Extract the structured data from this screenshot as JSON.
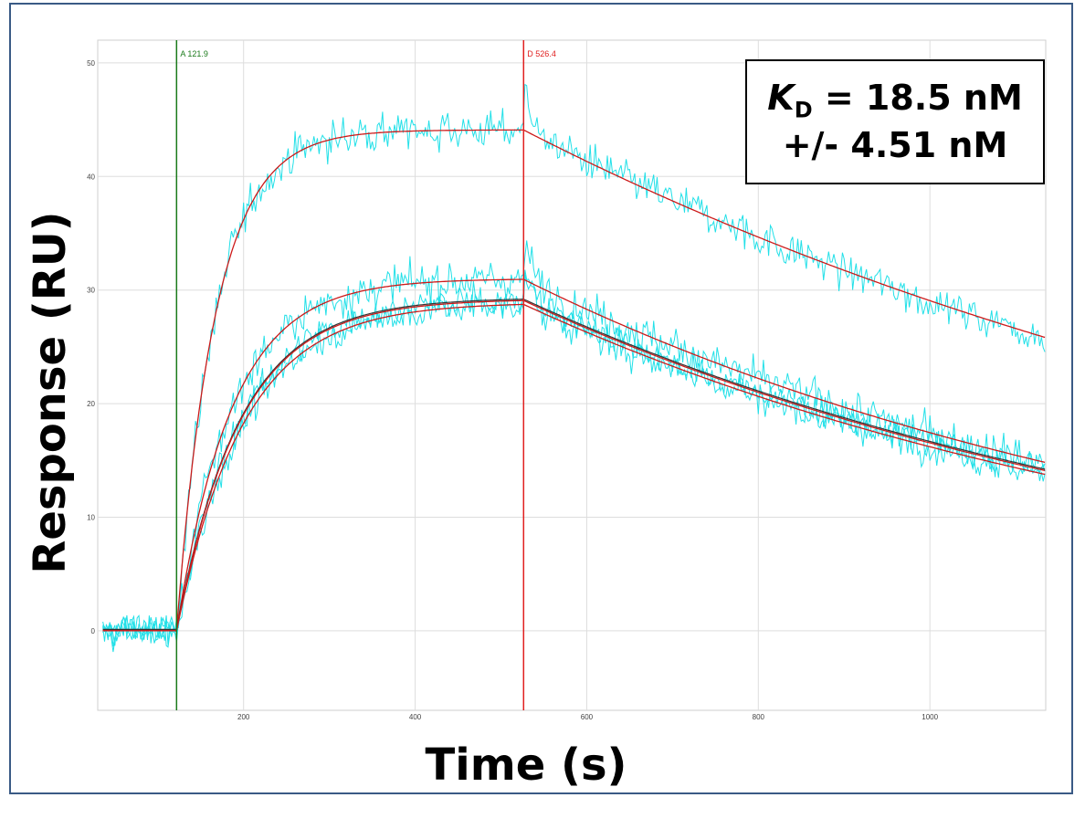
{
  "chart_data": {
    "type": "line",
    "xlabel": "Time (s)",
    "ylabel": "Response (RU)",
    "xlim": [
      30,
      1135
    ],
    "ylim": [
      -7,
      52
    ],
    "x_ticks": [
      200,
      400,
      600,
      800,
      1000
    ],
    "y_ticks": [
      0,
      10,
      20,
      30,
      40,
      50
    ],
    "grid": true,
    "markers": [
      {
        "label": "A 121.9",
        "x": 121.9,
        "color": "#1a7a1a"
      },
      {
        "label": "D 526.4",
        "x": 526.4,
        "color": "#e02020"
      }
    ],
    "fit_model": {
      "baseline_end": 121.9,
      "dissociation_start": 526.4,
      "end": 1135,
      "curves": [
        {
          "req": 44.1,
          "kobs": 0.022,
          "kd": 0.00088
        },
        {
          "req": 31.0,
          "kobs": 0.0155,
          "kd": 0.00121
        },
        {
          "req": 29.2,
          "kobs": 0.0135,
          "kd": 0.00119
        },
        {
          "req": 28.9,
          "kobs": 0.0128,
          "kd": 0.00121
        }
      ]
    },
    "colors": {
      "data": "#22e0e8",
      "fit": "#cc1a1a",
      "fit_dark": "#333333",
      "grid": "#dddddd"
    },
    "annotation": {
      "symbol": "K",
      "subscript": "D",
      "line1_rest": " = 18.5 nM",
      "line2": "+/- 4.51 nM"
    }
  }
}
